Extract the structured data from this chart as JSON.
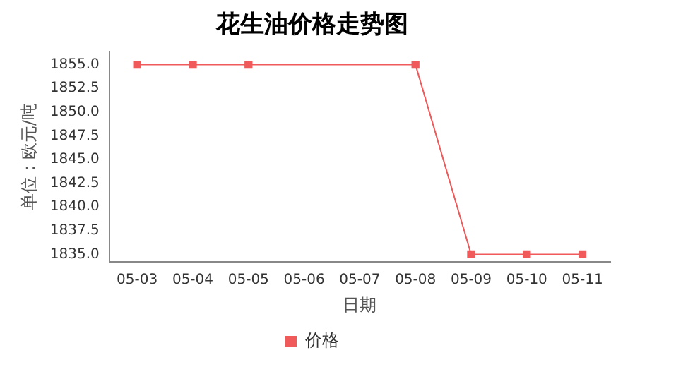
{
  "chart_data": {
    "type": "line",
    "title": "花生油价格走势图",
    "xlabel": "日期",
    "ylabel": "单位：欧元/吨",
    "categories": [
      "05-03",
      "05-04",
      "05-05",
      "05-06",
      "05-07",
      "05-08",
      "05-09",
      "05-10",
      "05-11"
    ],
    "series": [
      {
        "name": "价格",
        "color": "#f05a5a",
        "values": [
          1855,
          1855,
          1855,
          null,
          null,
          1855,
          1835,
          1835,
          1835
        ]
      }
    ],
    "ylim": [
      1834.2,
      1856.4
    ],
    "yticks": [
      {
        "value": 1835,
        "label": "1835.0"
      },
      {
        "value": 1837.5,
        "label": "1837.5"
      },
      {
        "value": 1840,
        "label": "1840.0"
      },
      {
        "value": 1842.5,
        "label": "1842.5"
      },
      {
        "value": 1845,
        "label": "1845.0"
      },
      {
        "value": 1847.5,
        "label": "1847.5"
      },
      {
        "value": 1850,
        "label": "1850.0"
      },
      {
        "value": 1852.5,
        "label": "1852.5"
      },
      {
        "value": 1855,
        "label": "1855.0"
      }
    ],
    "grid": false,
    "legend": "bottom",
    "marker": "square",
    "line_style": "solid"
  }
}
